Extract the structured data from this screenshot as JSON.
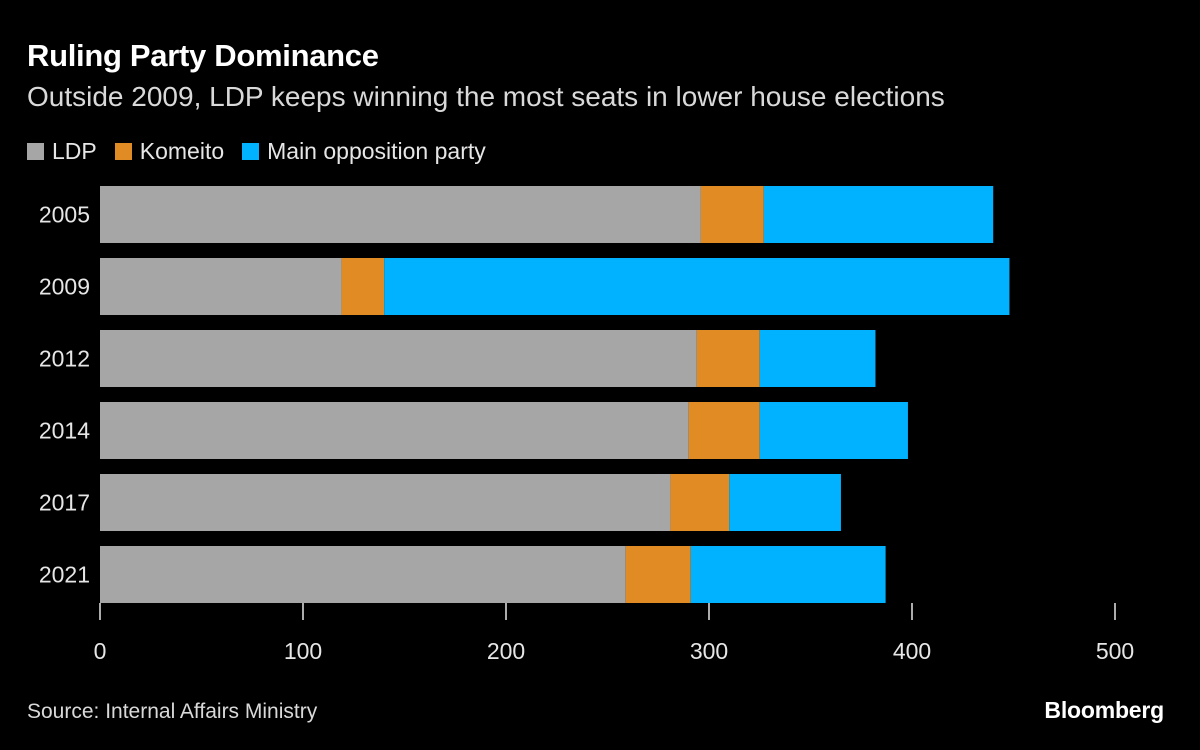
{
  "title": "Ruling Party Dominance",
  "subtitle": "Outside 2009, LDP keeps winning the most seats in lower house elections",
  "legend": [
    {
      "label": "LDP",
      "color": "#a6a6a6"
    },
    {
      "label": "Komeito",
      "color": "#e08b24"
    },
    {
      "label": "Main opposition party",
      "color": "#00b2ff"
    }
  ],
  "source": "Source: Internal Affairs Ministry",
  "brand": "Bloomberg",
  "chart_data": {
    "type": "bar",
    "orientation": "horizontal",
    "stacked": true,
    "categories": [
      "2005",
      "2009",
      "2012",
      "2014",
      "2017",
      "2021"
    ],
    "series": [
      {
        "name": "LDP",
        "color": "#a6a6a6",
        "values": [
          296,
          119,
          294,
          290,
          281,
          259
        ]
      },
      {
        "name": "Komeito",
        "color": "#e08b24",
        "values": [
          31,
          21,
          31,
          35,
          29,
          32
        ]
      },
      {
        "name": "Main opposition party",
        "color": "#00b2ff",
        "values": [
          113,
          308,
          57,
          73,
          55,
          96
        ]
      }
    ],
    "xlim": [
      0,
      500
    ],
    "xticks": [
      0,
      100,
      200,
      300,
      400,
      500
    ],
    "xlabel": "",
    "ylabel": "",
    "grid": false,
    "legend_position": "top-left"
  }
}
